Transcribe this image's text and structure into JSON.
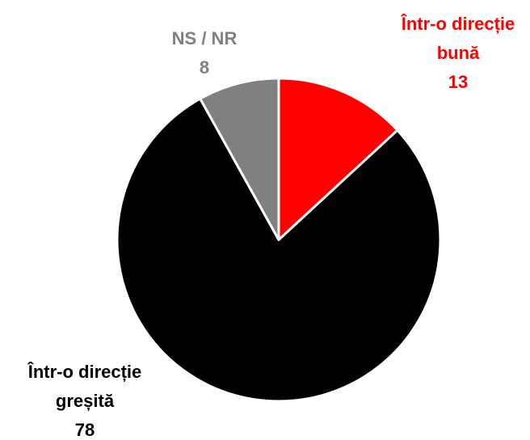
{
  "chart_data": {
    "type": "pie",
    "categories": [
      "Într-o direcție bună",
      "Într-o direcție greșită",
      "NS / NR"
    ],
    "values": [
      13,
      78,
      8
    ],
    "colors": [
      "#ff0000",
      "#000000",
      "#808080"
    ]
  }
}
